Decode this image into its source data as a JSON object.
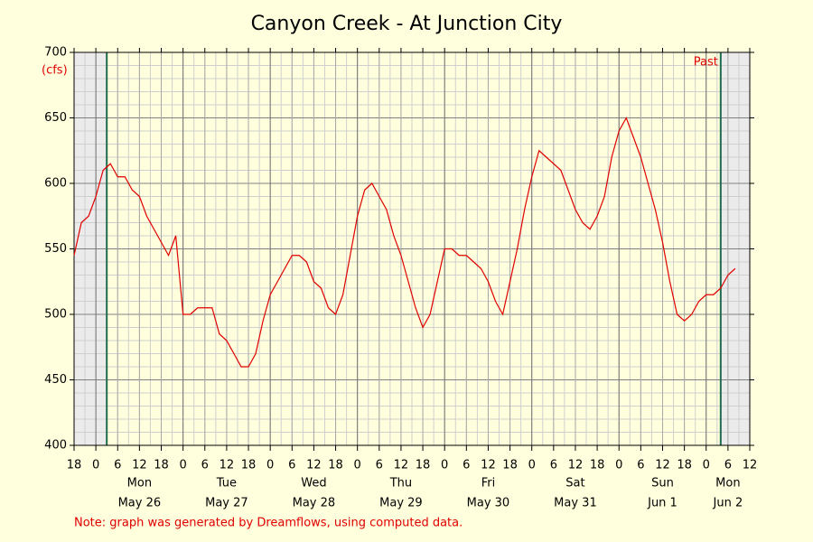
{
  "chart_data": {
    "type": "line",
    "title": "Canyon Creek - At Junction City",
    "y_label": "(cfs)",
    "annotation": "Past",
    "note": "Note: graph was generated by Dreamflows, using computed data.",
    "x": [
      0,
      2,
      4,
      6,
      8,
      10,
      12,
      14,
      16,
      18,
      20,
      22,
      24,
      26,
      28,
      30,
      32,
      34,
      36,
      38,
      40,
      42,
      44,
      46,
      48,
      50,
      52,
      54,
      56,
      58,
      60,
      62,
      64,
      66,
      68,
      70,
      72,
      74,
      76,
      78,
      80,
      82,
      84,
      86,
      88,
      90,
      92,
      94,
      96,
      98,
      100,
      102,
      104,
      106,
      108,
      110,
      112,
      114,
      116,
      118,
      120,
      122,
      124,
      126,
      128,
      130,
      132,
      134,
      136,
      138,
      140,
      142,
      144,
      146,
      148,
      150,
      152,
      154,
      156,
      158,
      160,
      162,
      164,
      166,
      168,
      170,
      172,
      174,
      176,
      178,
      180,
      182
    ],
    "series": [
      {
        "color": "#e00000",
        "values": [
          545,
          570,
          575,
          590,
          610,
          615,
          605,
          605,
          595,
          590,
          575,
          565,
          555,
          545,
          560,
          500,
          500,
          505,
          505,
          505,
          485,
          480,
          470,
          460,
          460,
          470,
          495,
          515,
          525,
          535,
          545,
          545,
          540,
          525,
          520,
          505,
          500,
          515,
          545,
          575,
          595,
          600,
          590,
          580,
          560,
          545,
          525,
          505,
          490,
          500,
          525,
          550,
          550,
          545,
          545,
          540,
          535,
          525,
          510,
          500,
          525,
          550,
          580,
          605,
          625,
          620,
          615,
          610,
          595,
          580,
          570,
          565,
          575,
          590,
          620,
          640,
          650,
          635,
          620,
          600,
          580,
          555,
          525,
          500,
          495,
          500,
          510,
          515,
          515,
          520,
          530,
          535
        ]
      }
    ],
    "xlim": [
      0,
      186
    ],
    "xticks": [
      {
        "value": 0,
        "label": "18"
      },
      {
        "value": 6,
        "label": "0"
      },
      {
        "value": 12,
        "label": "6"
      },
      {
        "value": 18,
        "label": "12"
      },
      {
        "value": 24,
        "label": "18"
      },
      {
        "value": 30,
        "label": "0"
      },
      {
        "value": 36,
        "label": "6"
      },
      {
        "value": 42,
        "label": "12"
      },
      {
        "value": 48,
        "label": "18"
      },
      {
        "value": 54,
        "label": "0"
      },
      {
        "value": 60,
        "label": "6"
      },
      {
        "value": 66,
        "label": "12"
      },
      {
        "value": 72,
        "label": "18"
      },
      {
        "value": 78,
        "label": "0"
      },
      {
        "value": 84,
        "label": "6"
      },
      {
        "value": 90,
        "label": "12"
      },
      {
        "value": 96,
        "label": "18"
      },
      {
        "value": 102,
        "label": "0"
      },
      {
        "value": 108,
        "label": "6"
      },
      {
        "value": 114,
        "label": "12"
      },
      {
        "value": 120,
        "label": "18"
      },
      {
        "value": 126,
        "label": "0"
      },
      {
        "value": 132,
        "label": "6"
      },
      {
        "value": 138,
        "label": "12"
      },
      {
        "value": 144,
        "label": "18"
      },
      {
        "value": 150,
        "label": "0"
      },
      {
        "value": 156,
        "label": "6"
      },
      {
        "value": 162,
        "label": "12"
      },
      {
        "value": 168,
        "label": "18"
      },
      {
        "value": 174,
        "label": "0"
      },
      {
        "value": 180,
        "label": "6"
      },
      {
        "value": 186,
        "label": "12"
      }
    ],
    "days": [
      {
        "weekday": "Mon",
        "date": "May 26"
      },
      {
        "weekday": "Tue",
        "date": "May 27"
      },
      {
        "weekday": "Wed",
        "date": "May 28"
      },
      {
        "weekday": "Thu",
        "date": "May 29"
      },
      {
        "weekday": "Fri",
        "date": "May 30"
      },
      {
        "weekday": "Sat",
        "date": "May 31"
      },
      {
        "weekday": "Sun",
        "date": "Jun 1"
      },
      {
        "weekday": "Mon",
        "date": "Jun 2"
      }
    ],
    "ylim": [
      400,
      700
    ],
    "yticks": [
      400,
      450,
      500,
      550,
      600,
      650,
      700
    ],
    "y_minor_step": 10,
    "x_minor_step": 3,
    "past_window": [
      9,
      178
    ],
    "grid": true
  }
}
